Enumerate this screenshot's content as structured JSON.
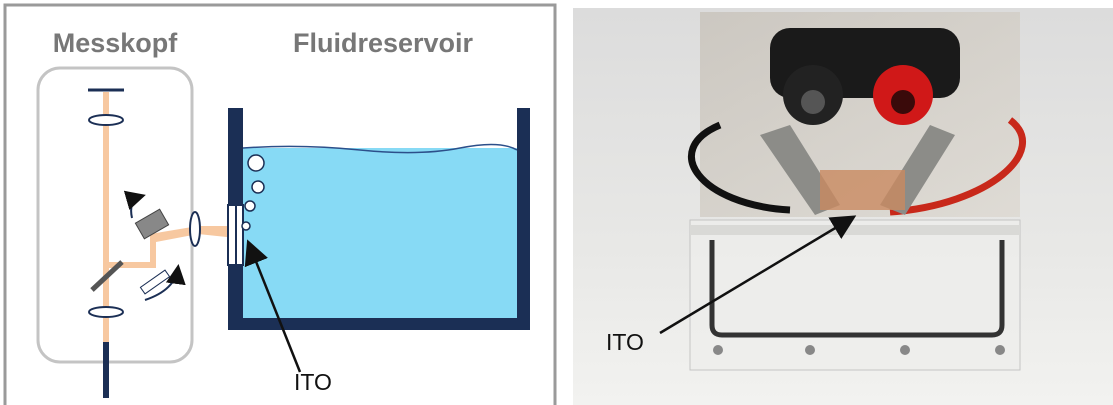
{
  "diagram": {
    "left_panel": {
      "head_label": "Messkopf",
      "reservoir_label": "Fluidreservoir",
      "ito_label": "ITO"
    },
    "right_panel": {
      "ito_label": "ITO"
    }
  }
}
